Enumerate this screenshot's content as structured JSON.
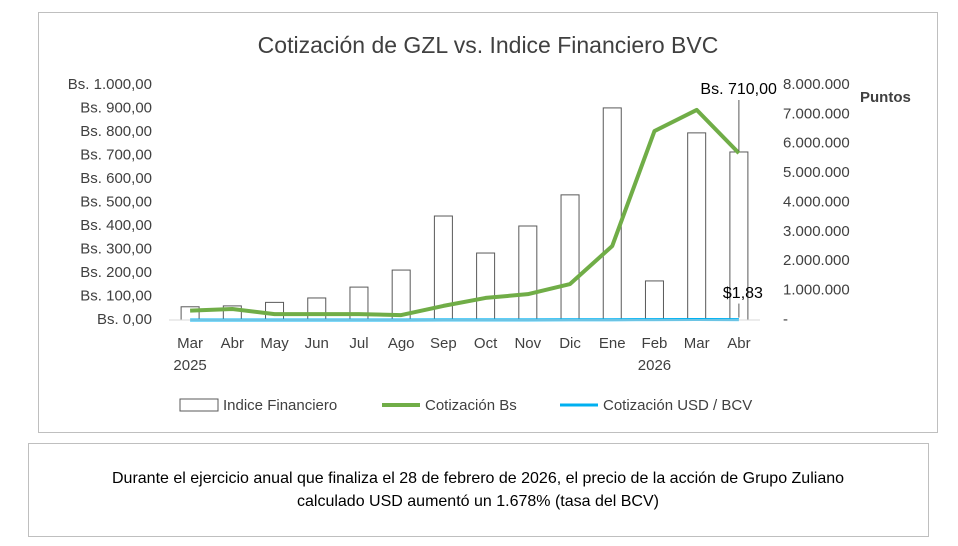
{
  "chart_data": {
    "type": "bar",
    "title": "Cotización de GZL vs. Indice Financiero BVC",
    "categories": [
      "Mar",
      "Abr",
      "May",
      "Jun",
      "Jul",
      "Ago",
      "Sep",
      "Oct",
      "Nov",
      "Dic",
      "Ene",
      "Feb",
      "Mar",
      "Abr"
    ],
    "year_labels": [
      "2025",
      null,
      null,
      null,
      null,
      null,
      null,
      null,
      null,
      null,
      null,
      "2026",
      null,
      null
    ],
    "series": [
      {
        "name": "Indice Financiero",
        "type": "bar",
        "axis": "y2",
        "color": "#595959",
        "values": [
          450000,
          480000,
          600000,
          750000,
          1120000,
          1700000,
          3540000,
          2280000,
          3200000,
          4260000,
          7220000,
          1330000,
          6370000,
          5720000
        ]
      },
      {
        "name": "Cotización Bs",
        "type": "line",
        "color": "#70ad47",
        "values": [
          40,
          47,
          25,
          25,
          25,
          21,
          60,
          94,
          110,
          153,
          315,
          804,
          894,
          710
        ],
        "value_labels": [
          null,
          null,
          null,
          null,
          null,
          null,
          null,
          null,
          null,
          null,
          null,
          null,
          null,
          "Bs. 710,00"
        ]
      },
      {
        "name": "Cotización USD / BCV",
        "type": "line",
        "color": "#00b0f0",
        "values": [
          0.1,
          0.11,
          0.09,
          0.09,
          0.09,
          0.08,
          0.3,
          0.6,
          0.6,
          0.9,
          1.2,
          1.78,
          1.9,
          1.83
        ],
        "value_labels": [
          null,
          null,
          null,
          null,
          null,
          null,
          null,
          null,
          null,
          null,
          null,
          null,
          null,
          "$1,83"
        ]
      }
    ],
    "ylim": [
      0,
      1000
    ],
    "yticks": [
      {
        "value": 0,
        "label": "Bs. 0,00"
      },
      {
        "value": 100,
        "label": "Bs. 100,00"
      },
      {
        "value": 200,
        "label": "Bs. 200,00"
      },
      {
        "value": 300,
        "label": "Bs. 300,00"
      },
      {
        "value": 400,
        "label": "Bs. 400,00"
      },
      {
        "value": 500,
        "label": "Bs. 500,00"
      },
      {
        "value": 600,
        "label": "Bs. 600,00"
      },
      {
        "value": 700,
        "label": "Bs. 700,00"
      },
      {
        "value": 800,
        "label": "Bs. 800,00"
      },
      {
        "value": 900,
        "label": "Bs. 900,00"
      },
      {
        "value": 1000,
        "label": "Bs. 1.000,00"
      }
    ],
    "y2lim": [
      0,
      8000000
    ],
    "y2ticks": [
      {
        "value": 0,
        "label": "-"
      },
      {
        "value": 1000000,
        "label": "1.000.000"
      },
      {
        "value": 2000000,
        "label": "2.000.000"
      },
      {
        "value": 3000000,
        "label": "3.000.000"
      },
      {
        "value": 4000000,
        "label": "4.000.000"
      },
      {
        "value": 5000000,
        "label": "5.000.000"
      },
      {
        "value": 6000000,
        "label": "6.000.000"
      },
      {
        "value": 7000000,
        "label": "7.000.000"
      },
      {
        "value": 8000000,
        "label": "8.000.000"
      }
    ],
    "y2label": "Puntos",
    "legend": "bottom",
    "note": [
      "Durante el ejercicio anual que finaliza el 28 de febrero de 2026, el precio de la acción de Grupo Zuliano",
      "calculado USD aumentó un 1.678% (tasa del BCV)"
    ]
  }
}
